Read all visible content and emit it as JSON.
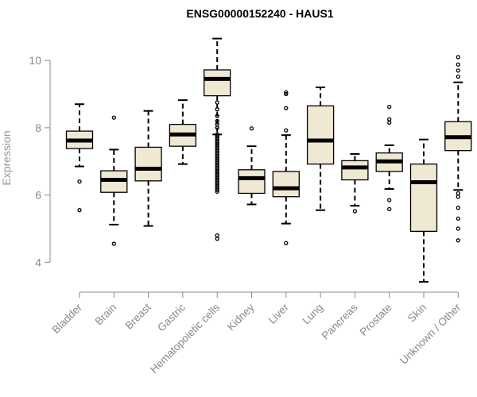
{
  "chart_data": {
    "type": "boxplot",
    "title": "ENSG00000152240 - HAUS1",
    "xlabel": "",
    "ylabel": "Expression",
    "ylim": [
      3.3,
      10.9
    ],
    "yticks": [
      4,
      6,
      8,
      10
    ],
    "box_fill": "#efe8d2",
    "median_color": "#000000",
    "categories": [
      "Bladder",
      "Brain",
      "Breast",
      "Gastric",
      "Hematopoietic cells",
      "Kidney",
      "Liver",
      "Lung",
      "Pancreas",
      "Prostate",
      "Skin",
      "Unknown / Other"
    ],
    "boxes": [
      {
        "name": "Bladder",
        "whisker_low": 6.85,
        "q1": 7.38,
        "median": 7.62,
        "q3": 7.9,
        "whisker_high": 8.7,
        "outliers": [
          6.4,
          5.55
        ]
      },
      {
        "name": "Brain",
        "whisker_low": 5.12,
        "q1": 6.08,
        "median": 6.45,
        "q3": 6.72,
        "whisker_high": 7.35,
        "outliers": [
          8.3,
          4.55
        ]
      },
      {
        "name": "Breast",
        "whisker_low": 5.08,
        "q1": 6.42,
        "median": 6.78,
        "q3": 7.42,
        "whisker_high": 8.5,
        "outliers": []
      },
      {
        "name": "Gastric",
        "whisker_low": 6.92,
        "q1": 7.45,
        "median": 7.8,
        "q3": 8.1,
        "whisker_high": 8.82,
        "outliers": []
      },
      {
        "name": "Hematopoietic cells",
        "whisker_low": 7.8,
        "q1": 8.95,
        "median": 9.45,
        "q3": 9.72,
        "whisker_high": 10.65,
        "outliers": [
          8.75,
          8.55,
          8.35,
          8.2,
          8.1,
          8.0,
          7.8,
          7.75,
          7.7,
          7.65,
          7.6,
          7.55,
          7.5,
          7.45,
          7.4,
          7.35,
          7.3,
          7.25,
          7.2,
          7.15,
          7.1,
          7.05,
          7.0,
          6.95,
          6.9,
          6.85,
          6.8,
          6.75,
          6.7,
          6.65,
          6.6,
          6.55,
          6.5,
          6.45,
          6.4,
          6.35,
          6.3,
          6.25,
          6.2,
          6.15,
          6.1,
          4.8,
          4.7
        ]
      },
      {
        "name": "Kidney",
        "whisker_low": 5.72,
        "q1": 6.05,
        "median": 6.5,
        "q3": 6.75,
        "whisker_high": 7.45,
        "outliers": [
          7.98
        ]
      },
      {
        "name": "Liver",
        "whisker_low": 5.15,
        "q1": 5.95,
        "median": 6.2,
        "q3": 6.7,
        "whisker_high": 7.78,
        "outliers": [
          9.05,
          9.0,
          8.58,
          7.92,
          4.57
        ]
      },
      {
        "name": "Lung",
        "whisker_low": 5.55,
        "q1": 6.92,
        "median": 7.62,
        "q3": 8.65,
        "whisker_high": 9.2,
        "outliers": []
      },
      {
        "name": "Pancreas",
        "whisker_low": 5.68,
        "q1": 6.45,
        "median": 6.82,
        "q3": 7.02,
        "whisker_high": 7.22,
        "outliers": [
          5.52
        ]
      },
      {
        "name": "Prostate",
        "whisker_low": 6.18,
        "q1": 6.7,
        "median": 7.0,
        "q3": 7.25,
        "whisker_high": 7.48,
        "outliers": [
          8.62,
          8.25,
          8.15,
          5.85,
          5.58
        ]
      },
      {
        "name": "Skin",
        "whisker_low": 3.42,
        "q1": 4.92,
        "median": 6.38,
        "q3": 6.92,
        "whisker_high": 7.65,
        "outliers": []
      },
      {
        "name": "Unknown / Other",
        "whisker_low": 6.15,
        "q1": 7.32,
        "median": 7.72,
        "q3": 8.18,
        "whisker_high": 9.35,
        "outliers": [
          10.1,
          9.88,
          9.7,
          9.52,
          6.05,
          5.95,
          5.62,
          5.3,
          5.0,
          4.65
        ]
      }
    ]
  }
}
